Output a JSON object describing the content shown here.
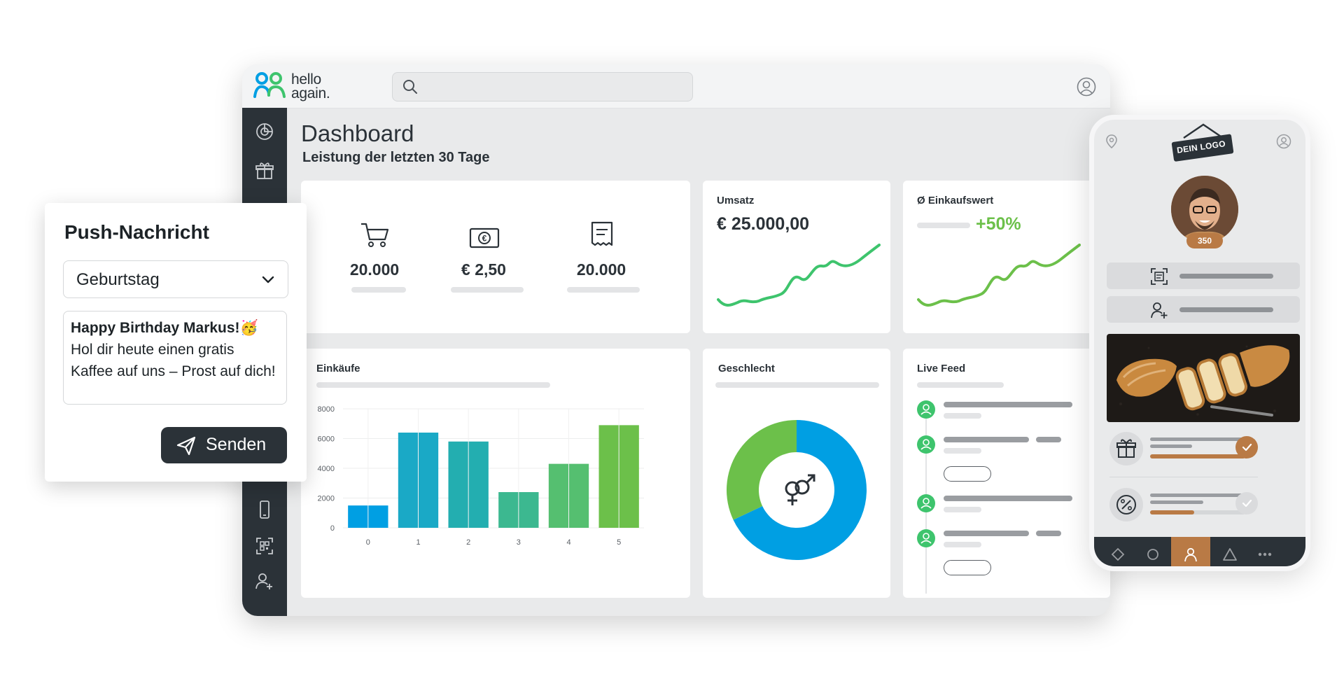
{
  "app": {
    "logo_text_line1": "hello",
    "logo_text_line2": "again.",
    "search_placeholder": ""
  },
  "dashboard": {
    "title": "Dashboard",
    "subtitle": "Leistung der letzten 30 Tage",
    "stats": [
      {
        "icon": "cart-icon",
        "value": "20.000"
      },
      {
        "icon": "euro-banknote-icon",
        "value": "€ 2,50"
      },
      {
        "icon": "receipt-icon",
        "value": "20.000"
      }
    ],
    "umsatz": {
      "label": "Umsatz",
      "value": "€ 25.000,00"
    },
    "einkaufswert": {
      "label": "Ø Einkaufswert",
      "change": "+50%"
    },
    "einkaeufe": {
      "label": "Einkäufe"
    },
    "geschlecht": {
      "label": "Geschlecht"
    },
    "live_feed": {
      "label": "Live Feed"
    }
  },
  "push": {
    "title": "Push-Nachricht",
    "selected": "Geburtstag",
    "message_bold": "Happy Birthday Markus!🥳",
    "message_rest": "Hol dir heute einen gratis Kaffee auf uns – Prost auf dich!",
    "send_label": "Senden"
  },
  "phone": {
    "sign_text": "DEIN LOGO",
    "points": "350"
  },
  "colors": {
    "sidebar": "#2b3238",
    "accent_green": "#3ec46d",
    "accent_blue": "#009fe3",
    "accent_lime": "#6cc04a",
    "phone_accent": "#b97a45"
  },
  "chart_data": [
    {
      "type": "bar",
      "title": "Einkäufe",
      "categories": [
        "0",
        "1",
        "2",
        "3",
        "4",
        "5"
      ],
      "values": [
        1500,
        6400,
        5800,
        2400,
        4300,
        6900
      ],
      "yticks": [
        "0",
        "2000",
        "4000",
        "6000",
        "8000"
      ],
      "ylim": [
        0,
        8000
      ],
      "grid": true
    },
    {
      "type": "pie",
      "title": "Geschlecht",
      "series": [
        {
          "values": [
            68,
            32
          ]
        }
      ],
      "colors": [
        "#009fe3",
        "#6cc04a"
      ]
    }
  ]
}
